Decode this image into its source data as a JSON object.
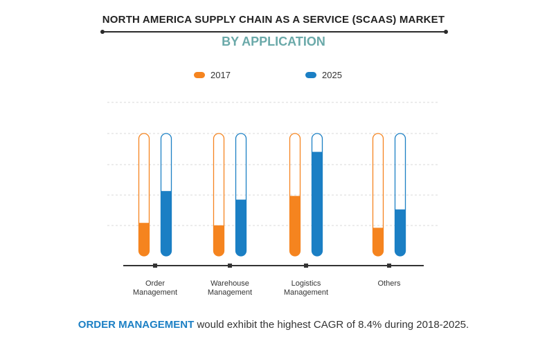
{
  "title": "NORTH AMERICA SUPPLY CHAIN AS A SERVICE (SCAAS) MARKET",
  "subtitle": "BY APPLICATION",
  "colors": {
    "series_2017": "#f5841f",
    "series_2025": "#1b7fc4",
    "subtitle": "#6aa9a9",
    "highlight": "#1b7fc4",
    "grid": "#d8d8d8",
    "axis": "#333333"
  },
  "chart_data": {
    "type": "bar",
    "title": "NORTH AMERICA SUPPLY CHAIN AS A SERVICE (SCAAS) MARKET",
    "subtitle": "BY APPLICATION",
    "xlabel": "",
    "ylabel": "",
    "categories": [
      [
        "Order",
        "Management"
      ],
      [
        "Warehouse",
        "Management"
      ],
      [
        "Logistics",
        "Management"
      ],
      [
        "Others"
      ]
    ],
    "series": [
      {
        "name": "2017",
        "values": [
          27,
          25,
          49,
          23
        ]
      },
      {
        "name": "2025",
        "values": [
          53,
          46,
          85,
          38
        ]
      }
    ],
    "ylim": [
      0,
      100
    ],
    "grid": true,
    "legend_position": "top-center"
  },
  "footer": {
    "highlight": "ORDER MANAGEMENT",
    "rest": " would exhibit the highest CAGR of 8.4% during 2018-2025."
  }
}
